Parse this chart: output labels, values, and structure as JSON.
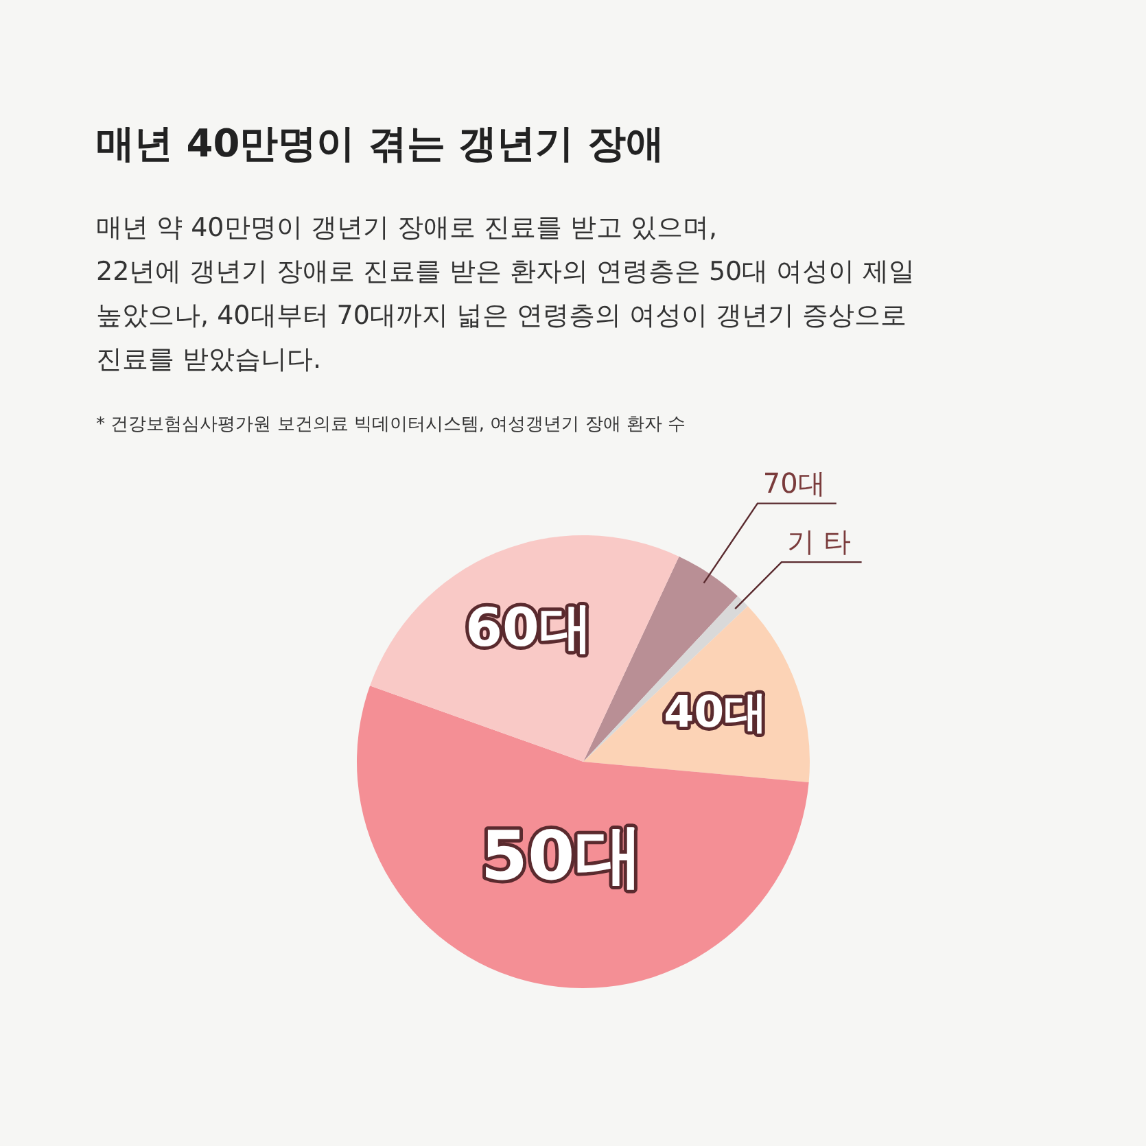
{
  "chart_data": {
    "type": "pie",
    "title": "매년 40만명이 겪는 갱년기 장애",
    "subtitle": "매년 약 40만명이 갱년기 장애로 진료를 받고 있으며,\n22년에 갱년기 장애로 진료를 받은 환자의 연령층은 50대 여성이 제일\n높았으나, 40대부터 70대까지 넓은 연령층의 여성이 갱년기 증상으로\n진료를 받았습니다.",
    "annotations": [
      "* 건강보험심사평가원 보건의료 빅데이터시스템, 여성갱년기 장애 환자 수"
    ],
    "categories": [
      "70대",
      "기 타",
      "40대",
      "50대",
      "60대"
    ],
    "values": [
      5,
      1,
      13.5,
      54,
      26.5
    ],
    "colors": [
      "#b98f95",
      "#d9d9d9",
      "#fcd3b6",
      "#f48f95",
      "#f9c9c6"
    ],
    "legend": false
  }
}
